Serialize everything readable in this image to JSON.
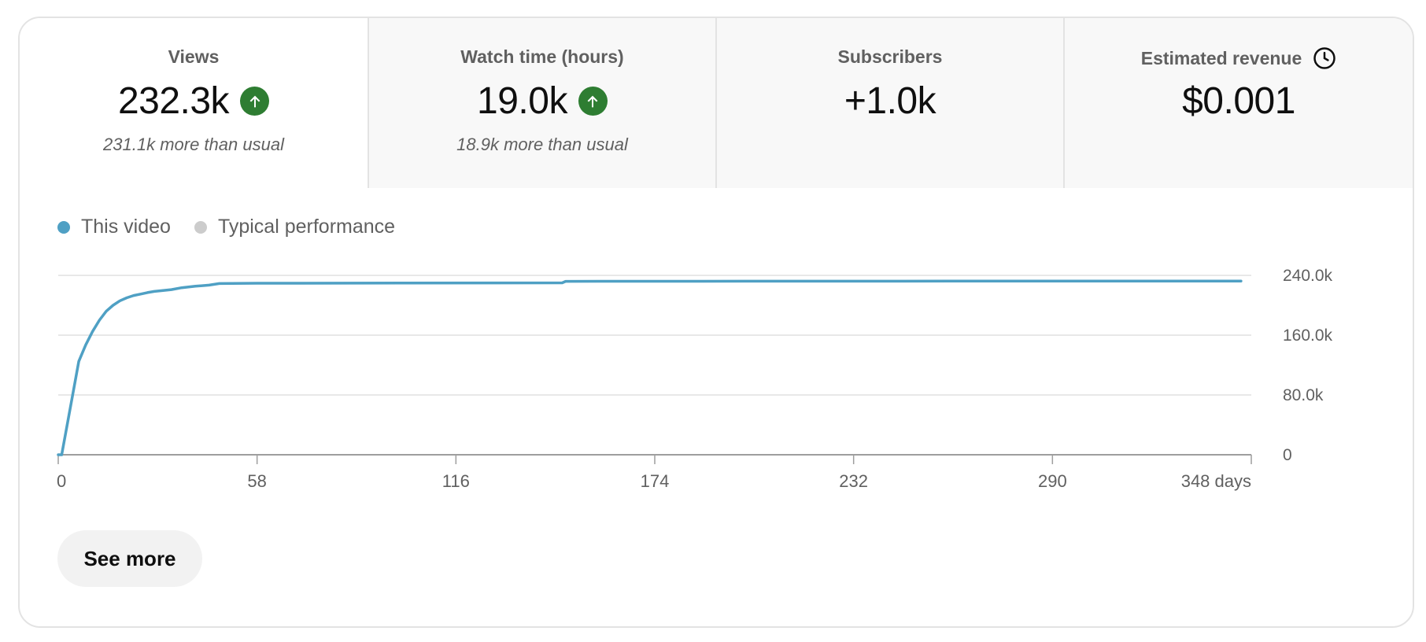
{
  "metrics": [
    {
      "title": "Views",
      "value": "232.3k",
      "note": "231.1k more than usual",
      "trend_icon": "arrow-up-circle-icon"
    },
    {
      "title": "Watch time (hours)",
      "value": "19.0k",
      "note": "18.9k more than usual",
      "trend_icon": "arrow-up-circle-icon"
    },
    {
      "title": "Subscribers",
      "value": "+1.0k",
      "note": ""
    },
    {
      "title": "Estimated revenue",
      "value": "$0.001",
      "note": "",
      "title_icon": "clock-icon"
    }
  ],
  "selected_metric": "Views",
  "colors": {
    "this_video": "#4fa0c4",
    "typical": "#cccccc",
    "trend_up": "#2e7d32",
    "grid": "#e0e0e0"
  },
  "legend": {
    "this_video": "This video",
    "typical": "Typical performance"
  },
  "chart_data": {
    "type": "line",
    "y_ticks": [
      "0",
      "80.0k",
      "160.0k",
      "240.0k"
    ],
    "x_ticks": [
      "0",
      "58",
      "116",
      "174",
      "232",
      "290",
      "348 days"
    ],
    "xlim": [
      0,
      348
    ],
    "ylim": [
      0,
      240000
    ],
    "grid": true,
    "series": [
      {
        "name": "This video",
        "x": [
          0,
          1,
          3,
          5,
          6,
          8,
          10,
          12,
          14,
          16,
          18,
          20,
          22,
          24,
          26,
          28,
          30,
          33,
          36,
          40,
          44,
          47,
          58,
          100,
          147,
          148,
          200,
          260,
          320,
          345
        ],
        "y": [
          0,
          0,
          50000,
          100000,
          125000,
          147000,
          165000,
          180000,
          192000,
          200000,
          206000,
          210000,
          213000,
          215000,
          217000,
          218500,
          219500,
          221000,
          223500,
          225500,
          227000,
          229000,
          229500,
          229700,
          230000,
          232000,
          232200,
          232300,
          232300,
          232300
        ]
      }
    ]
  },
  "see_more_label": "See more"
}
